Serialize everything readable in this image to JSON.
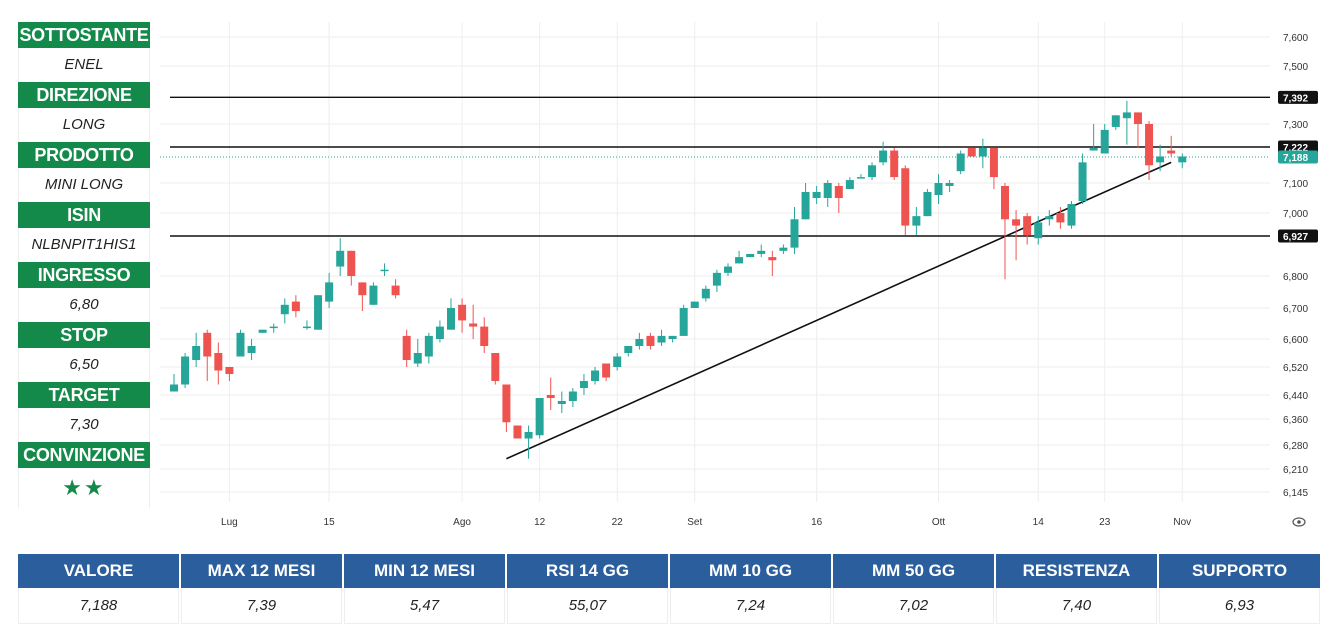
{
  "left_panel": [
    {
      "label": "SOTTOSTANTE",
      "value": "ENEL"
    },
    {
      "label": "DIREZIONE",
      "value": "LONG"
    },
    {
      "label": "PRODOTTO",
      "value": "MINI LONG"
    },
    {
      "label": "ISIN",
      "value": "NLBNPIT1HIS1"
    },
    {
      "label": "INGRESSO",
      "value": "6,80"
    },
    {
      "label": "STOP",
      "value": "6,50"
    },
    {
      "label": "TARGET",
      "value": "7,30"
    },
    {
      "label": "CONVINZIONE",
      "value": "★★"
    }
  ],
  "bottom_table": {
    "headers": [
      "VALORE",
      "MAX 12 MESI",
      "MIN 12 MESI",
      "RSI 14 GG",
      "MM 10 GG",
      "MM 50 GG",
      "RESISTENZA",
      "SUPPORTO"
    ],
    "values": [
      "7,188",
      "7,39",
      "5,47",
      "55,07",
      "7,24",
      "7,02",
      "7,40",
      "6,93"
    ]
  },
  "colors": {
    "green": "#148a4a",
    "blue": "#2a5e9c",
    "candle_up": "#26a69a",
    "candle_down": "#ef5350",
    "grid": "#eeeeee",
    "line": "#111111"
  },
  "chart_data": {
    "type": "candlestick",
    "x_ticks": [
      {
        "label": "Lug",
        "i": 5
      },
      {
        "label": "15",
        "i": 14
      },
      {
        "label": "Ago",
        "i": 26
      },
      {
        "label": "12",
        "i": 33
      },
      {
        "label": "22",
        "i": 40
      },
      {
        "label": "Set",
        "i": 47
      },
      {
        "label": "16",
        "i": 58
      },
      {
        "label": "Ott",
        "i": 69
      },
      {
        "label": "14",
        "i": 78
      },
      {
        "label": "23",
        "i": 84
      },
      {
        "label": "Nov",
        "i": 91
      }
    ],
    "y_ticks": [
      {
        "label": "7,600",
        "v": 7.6
      },
      {
        "label": "7,500",
        "v": 7.5
      },
      {
        "label": "7,300",
        "v": 7.3
      },
      {
        "label": "7,100",
        "v": 7.1
      },
      {
        "label": "7,000",
        "v": 7.0
      },
      {
        "label": "6,800",
        "v": 6.8
      },
      {
        "label": "6,700",
        "v": 6.7
      },
      {
        "label": "6,600",
        "v": 6.6
      },
      {
        "label": "6,520",
        "v": 6.52
      },
      {
        "label": "6,440",
        "v": 6.44
      },
      {
        "label": "6,360",
        "v": 6.36
      },
      {
        "label": "6,280",
        "v": 6.28
      },
      {
        "label": "6,210",
        "v": 6.21
      },
      {
        "label": "6,145",
        "v": 6.145
      }
    ],
    "horizontal_levels": [
      {
        "label": "7,392",
        "v": 7.392,
        "style": "solid"
      },
      {
        "label": "7,222",
        "v": 7.222,
        "style": "solid"
      },
      {
        "label": "6,927",
        "v": 6.927,
        "style": "solid"
      },
      {
        "label": "7,188",
        "v": 7.188,
        "style": "dotted"
      }
    ],
    "trendline": {
      "from": {
        "i": 30,
        "v": 6.24
      },
      "to": {
        "i": 90,
        "v": 7.17
      }
    },
    "candles": [
      {
        "o": 6.45,
        "h": 6.5,
        "l": 6.45,
        "c": 6.47
      },
      {
        "o": 6.47,
        "h": 6.56,
        "l": 6.46,
        "c": 6.55
      },
      {
        "o": 6.54,
        "h": 6.62,
        "l": 6.52,
        "c": 6.58
      },
      {
        "o": 6.62,
        "h": 6.63,
        "l": 6.48,
        "c": 6.55
      },
      {
        "o": 6.56,
        "h": 6.59,
        "l": 6.47,
        "c": 6.51
      },
      {
        "o": 6.52,
        "h": 6.52,
        "l": 6.48,
        "c": 6.5
      },
      {
        "o": 6.55,
        "h": 6.63,
        "l": 6.55,
        "c": 6.62
      },
      {
        "o": 6.56,
        "h": 6.6,
        "l": 6.54,
        "c": 6.58
      },
      {
        "o": 6.62,
        "h": 6.63,
        "l": 6.62,
        "c": 6.63
      },
      {
        "o": 6.64,
        "h": 6.65,
        "l": 6.62,
        "c": 6.64
      },
      {
        "o": 6.68,
        "h": 6.73,
        "l": 6.65,
        "c": 6.71
      },
      {
        "o": 6.72,
        "h": 6.74,
        "l": 6.67,
        "c": 6.69
      },
      {
        "o": 6.64,
        "h": 6.66,
        "l": 6.63,
        "c": 6.64
      },
      {
        "o": 6.63,
        "h": 6.74,
        "l": 6.63,
        "c": 6.74
      },
      {
        "o": 6.72,
        "h": 6.81,
        "l": 6.7,
        "c": 6.78
      },
      {
        "o": 6.83,
        "h": 6.92,
        "l": 6.8,
        "c": 6.88
      },
      {
        "o": 6.88,
        "h": 6.88,
        "l": 6.77,
        "c": 6.8
      },
      {
        "o": 6.78,
        "h": 6.78,
        "l": 6.69,
        "c": 6.74
      },
      {
        "o": 6.71,
        "h": 6.78,
        "l": 6.71,
        "c": 6.77
      },
      {
        "o": 6.82,
        "h": 6.84,
        "l": 6.8,
        "c": 6.82
      },
      {
        "o": 6.77,
        "h": 6.79,
        "l": 6.73,
        "c": 6.74
      },
      {
        "o": 6.61,
        "h": 6.63,
        "l": 6.52,
        "c": 6.54
      },
      {
        "o": 6.53,
        "h": 6.6,
        "l": 6.52,
        "c": 6.56
      },
      {
        "o": 6.55,
        "h": 6.62,
        "l": 6.53,
        "c": 6.61
      },
      {
        "o": 6.6,
        "h": 6.66,
        "l": 6.59,
        "c": 6.64
      },
      {
        "o": 6.63,
        "h": 6.73,
        "l": 6.63,
        "c": 6.7
      },
      {
        "o": 6.71,
        "h": 6.73,
        "l": 6.62,
        "c": 6.66
      },
      {
        "o": 6.65,
        "h": 6.71,
        "l": 6.6,
        "c": 6.64
      },
      {
        "o": 6.64,
        "h": 6.67,
        "l": 6.56,
        "c": 6.58
      },
      {
        "o": 6.56,
        "h": 6.56,
        "l": 6.47,
        "c": 6.48
      },
      {
        "o": 6.47,
        "h": 6.47,
        "l": 6.32,
        "c": 6.35
      },
      {
        "o": 6.34,
        "h": 6.34,
        "l": 6.3,
        "c": 6.3
      },
      {
        "o": 6.3,
        "h": 6.34,
        "l": 6.24,
        "c": 6.32
      },
      {
        "o": 6.31,
        "h": 6.43,
        "l": 6.3,
        "c": 6.43
      },
      {
        "o": 6.44,
        "h": 6.49,
        "l": 6.39,
        "c": 6.43
      },
      {
        "o": 6.41,
        "h": 6.45,
        "l": 6.38,
        "c": 6.42
      },
      {
        "o": 6.42,
        "h": 6.46,
        "l": 6.4,
        "c": 6.45
      },
      {
        "o": 6.46,
        "h": 6.5,
        "l": 6.44,
        "c": 6.48
      },
      {
        "o": 6.48,
        "h": 6.52,
        "l": 6.47,
        "c": 6.51
      },
      {
        "o": 6.53,
        "h": 6.53,
        "l": 6.48,
        "c": 6.49
      },
      {
        "o": 6.52,
        "h": 6.56,
        "l": 6.51,
        "c": 6.55
      },
      {
        "o": 6.56,
        "h": 6.58,
        "l": 6.55,
        "c": 6.58
      },
      {
        "o": 6.58,
        "h": 6.62,
        "l": 6.57,
        "c": 6.6
      },
      {
        "o": 6.61,
        "h": 6.62,
        "l": 6.57,
        "c": 6.58
      },
      {
        "o": 6.59,
        "h": 6.63,
        "l": 6.58,
        "c": 6.61
      },
      {
        "o": 6.6,
        "h": 6.61,
        "l": 6.59,
        "c": 6.61
      },
      {
        "o": 6.61,
        "h": 6.71,
        "l": 6.61,
        "c": 6.7
      },
      {
        "o": 6.7,
        "h": 6.72,
        "l": 6.7,
        "c": 6.72
      },
      {
        "o": 6.73,
        "h": 6.77,
        "l": 6.72,
        "c": 6.76
      },
      {
        "o": 6.77,
        "h": 6.82,
        "l": 6.75,
        "c": 6.81
      },
      {
        "o": 6.81,
        "h": 6.84,
        "l": 6.8,
        "c": 6.83
      },
      {
        "o": 6.84,
        "h": 6.88,
        "l": 6.84,
        "c": 6.86
      },
      {
        "o": 6.86,
        "h": 6.87,
        "l": 6.86,
        "c": 6.87
      },
      {
        "o": 6.87,
        "h": 6.9,
        "l": 6.86,
        "c": 6.88
      },
      {
        "o": 6.86,
        "h": 6.88,
        "l": 6.8,
        "c": 6.85
      },
      {
        "o": 6.88,
        "h": 6.9,
        "l": 6.87,
        "c": 6.89
      },
      {
        "o": 6.89,
        "h": 7.02,
        "l": 6.87,
        "c": 6.98
      },
      {
        "o": 6.98,
        "h": 7.1,
        "l": 6.98,
        "c": 7.07
      },
      {
        "o": 7.05,
        "h": 7.09,
        "l": 7.03,
        "c": 7.07
      },
      {
        "o": 7.05,
        "h": 7.11,
        "l": 7.02,
        "c": 7.1
      },
      {
        "o": 7.09,
        "h": 7.1,
        "l": 7.0,
        "c": 7.05
      },
      {
        "o": 7.08,
        "h": 7.12,
        "l": 7.08,
        "c": 7.11
      },
      {
        "o": 7.12,
        "h": 7.13,
        "l": 7.12,
        "c": 7.12
      },
      {
        "o": 7.12,
        "h": 7.17,
        "l": 7.11,
        "c": 7.16
      },
      {
        "o": 7.17,
        "h": 7.24,
        "l": 7.16,
        "c": 7.21
      },
      {
        "o": 7.21,
        "h": 7.22,
        "l": 7.11,
        "c": 7.12
      },
      {
        "o": 7.15,
        "h": 7.16,
        "l": 6.93,
        "c": 6.96
      },
      {
        "o": 6.96,
        "h": 7.02,
        "l": 6.93,
        "c": 6.99
      },
      {
        "o": 6.99,
        "h": 7.08,
        "l": 6.99,
        "c": 7.07
      },
      {
        "o": 7.06,
        "h": 7.13,
        "l": 7.03,
        "c": 7.1
      },
      {
        "o": 7.09,
        "h": 7.11,
        "l": 7.07,
        "c": 7.1
      },
      {
        "o": 7.14,
        "h": 7.21,
        "l": 7.13,
        "c": 7.2
      },
      {
        "o": 7.22,
        "h": 7.22,
        "l": 7.2,
        "c": 7.19
      },
      {
        "o": 7.19,
        "h": 7.25,
        "l": 7.15,
        "c": 7.22
      },
      {
        "o": 7.22,
        "h": 7.22,
        "l": 7.08,
        "c": 7.12
      },
      {
        "o": 7.09,
        "h": 7.1,
        "l": 6.79,
        "c": 6.98
      },
      {
        "o": 6.98,
        "h": 7.01,
        "l": 6.85,
        "c": 6.96
      },
      {
        "o": 6.99,
        "h": 7.0,
        "l": 6.9,
        "c": 6.93
      },
      {
        "o": 6.92,
        "h": 6.99,
        "l": 6.9,
        "c": 6.97
      },
      {
        "o": 6.98,
        "h": 7.01,
        "l": 6.96,
        "c": 6.99
      },
      {
        "o": 7.0,
        "h": 7.02,
        "l": 6.95,
        "c": 6.97
      },
      {
        "o": 6.96,
        "h": 7.04,
        "l": 6.95,
        "c": 7.03
      },
      {
        "o": 7.04,
        "h": 7.2,
        "l": 7.03,
        "c": 7.17
      },
      {
        "o": 7.21,
        "h": 7.3,
        "l": 7.21,
        "c": 7.22
      },
      {
        "o": 7.2,
        "h": 7.3,
        "l": 7.2,
        "c": 7.28
      },
      {
        "o": 7.29,
        "h": 7.33,
        "l": 7.28,
        "c": 7.33
      },
      {
        "o": 7.32,
        "h": 7.38,
        "l": 7.23,
        "c": 7.34
      },
      {
        "o": 7.34,
        "h": 7.34,
        "l": 7.22,
        "c": 7.3
      },
      {
        "o": 7.3,
        "h": 7.31,
        "l": 7.11,
        "c": 7.16
      },
      {
        "o": 7.17,
        "h": 7.23,
        "l": 7.14,
        "c": 7.19
      },
      {
        "o": 7.21,
        "h": 7.26,
        "l": 7.19,
        "c": 7.2
      },
      {
        "o": 7.17,
        "h": 7.2,
        "l": 7.15,
        "c": 7.19
      }
    ]
  }
}
